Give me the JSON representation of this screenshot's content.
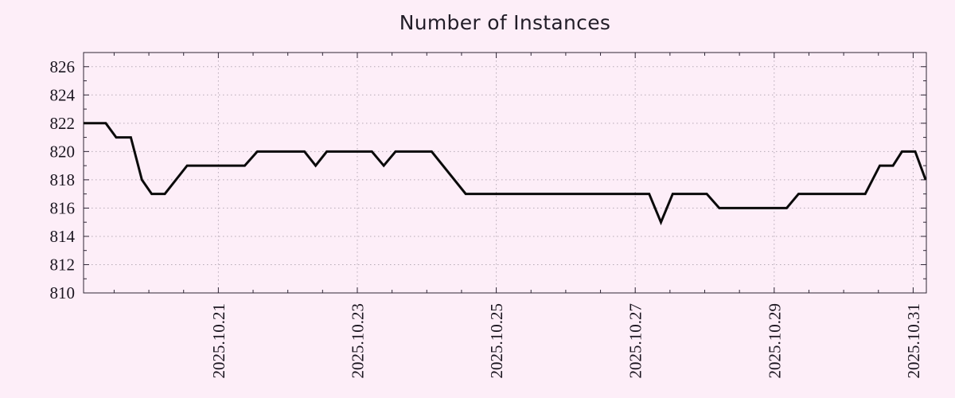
{
  "title": "Number of Instances",
  "colors": {
    "background": "#fdeef8",
    "line": "#0a0a0a",
    "axis": "#2e2535",
    "grid": "#b5a9b5",
    "tick_text": "#1a151f",
    "title_text": "#221d28"
  },
  "chart_data": {
    "type": "line",
    "title": "Number of Instances",
    "xlabel": "",
    "ylabel": "",
    "x_unit": "day of October 2025 (fractional days)",
    "grid": true,
    "legend": false,
    "xlim": [
      19.06,
      31.19
    ],
    "ylim": [
      810,
      827
    ],
    "x_minor_tick_step": 0.5,
    "y_minor_tick_step": 1,
    "x_ticks": [
      {
        "value": 21,
        "label": "2025.10.21"
      },
      {
        "value": 23,
        "label": "2025.10.23"
      },
      {
        "value": 25,
        "label": "2025.10.25"
      },
      {
        "value": 27,
        "label": "2025.10.27"
      },
      {
        "value": 29,
        "label": "2025.10.29"
      },
      {
        "value": 31,
        "label": "2025.10.31"
      }
    ],
    "y_ticks": [
      810,
      812,
      814,
      816,
      818,
      820,
      822,
      824,
      826
    ],
    "series": [
      {
        "name": "instances",
        "color": "#0a0a0a",
        "points": [
          [
            19.06,
            822
          ],
          [
            19.38,
            822
          ],
          [
            19.53,
            821
          ],
          [
            19.74,
            821
          ],
          [
            19.9,
            818
          ],
          [
            20.04,
            817
          ],
          [
            20.23,
            817
          ],
          [
            20.55,
            819
          ],
          [
            21.38,
            819
          ],
          [
            21.56,
            820
          ],
          [
            22.24,
            820
          ],
          [
            22.4,
            819
          ],
          [
            22.56,
            820
          ],
          [
            23.21,
            820
          ],
          [
            23.38,
            819
          ],
          [
            23.55,
            820
          ],
          [
            24.07,
            820
          ],
          [
            24.56,
            817
          ],
          [
            27.2,
            817
          ],
          [
            27.37,
            815
          ],
          [
            27.54,
            817
          ],
          [
            28.03,
            817
          ],
          [
            28.21,
            816
          ],
          [
            29.18,
            816
          ],
          [
            29.35,
            817
          ],
          [
            30.31,
            817
          ],
          [
            30.52,
            819
          ],
          [
            30.71,
            819
          ],
          [
            30.84,
            820
          ],
          [
            31.03,
            820
          ],
          [
            31.18,
            818
          ]
        ]
      }
    ]
  }
}
